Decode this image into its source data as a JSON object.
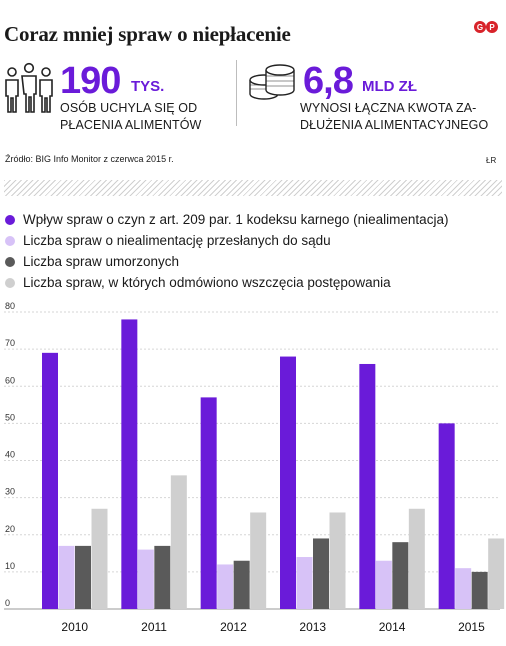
{
  "header": {
    "title": "Coraz mniej spraw o niepłacenie",
    "logo_text": "GP"
  },
  "stats": [
    {
      "value": "190",
      "unit": "TYS.",
      "desc_line1": "OSÓB UCHYLA SIĘ OD",
      "desc_line2": "PŁACENIA ALIMENTÓW",
      "icon": "people-icon"
    },
    {
      "value": "6,8",
      "unit": "MLD ZŁ",
      "desc_line1": "WYNOSI ŁĄCZNA KWOTA ZA-",
      "desc_line2": "DŁUŻENIA ALIMENTACYJNEGO",
      "icon": "coins-icon"
    }
  ],
  "source": "Źródło: BIG Info Monitor z czerwca 2015 r.",
  "initials": "ŁR",
  "colors": {
    "accent": "#6a1bd9",
    "series": [
      "#6a1bd9",
      "#d7c2f7",
      "#5a5a5a",
      "#cfcfcf"
    ]
  },
  "chart_data": {
    "type": "bar",
    "categories": [
      "2010",
      "2011",
      "2012",
      "2013",
      "2014",
      "2015"
    ],
    "ylim": [
      0,
      80
    ],
    "yticks": [
      0,
      10,
      20,
      30,
      40,
      50,
      60,
      70,
      80
    ],
    "grid": true,
    "legend_position": "top",
    "series": [
      {
        "name": "Wpływ spraw o czyn z art. 209 par. 1 kodeksu karnego (niealimentacja)",
        "values": [
          69,
          78,
          57,
          68,
          66,
          50
        ]
      },
      {
        "name": "Liczba spraw o niealimentację przesłanych do sądu",
        "values": [
          17,
          16,
          12,
          14,
          13,
          11
        ]
      },
      {
        "name": "Liczba spraw umorzonych",
        "values": [
          17,
          17,
          13,
          19,
          18,
          10
        ]
      },
      {
        "name": "Liczba spraw, w których odmówiono wszczęcia postępowania",
        "values": [
          27,
          36,
          26,
          26,
          27,
          19
        ]
      }
    ]
  }
}
